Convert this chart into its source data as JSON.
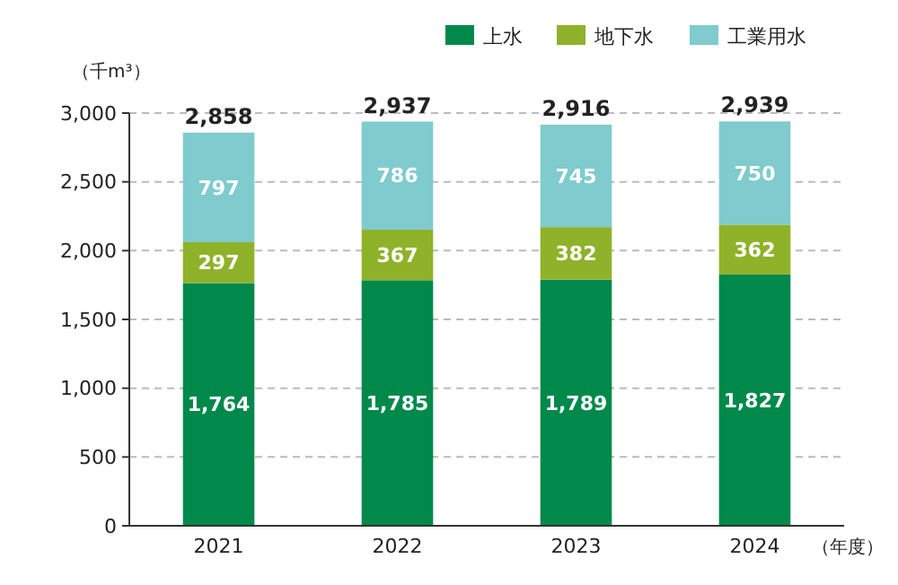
{
  "chart_data": {
    "type": "bar",
    "stacked": true,
    "categories": [
      "2021",
      "2022",
      "2023",
      "2024"
    ],
    "series": [
      {
        "name": "上水",
        "color": "#00894b",
        "values": [
          1764,
          1785,
          1789,
          1827
        ],
        "value_labels": [
          "1,764",
          "1,785",
          "1,789",
          "1,827"
        ]
      },
      {
        "name": "地下水",
        "color": "#8fb22a",
        "values": [
          297,
          367,
          382,
          362
        ],
        "value_labels": [
          "297",
          "367",
          "382",
          "362"
        ]
      },
      {
        "name": "工業用水",
        "color": "#7fcbcd",
        "values": [
          797,
          786,
          745,
          750
        ],
        "value_labels": [
          "797",
          "786",
          "745",
          "750"
        ]
      }
    ],
    "totals": [
      "2,858",
      "2,937",
      "2,916",
      "2,939"
    ],
    "ylim": [
      0,
      3000
    ],
    "yticks": [
      0,
      500,
      {
        "value": 1000,
        "label": "1,000"
      },
      {
        "value": 1500,
        "label": "1,500"
      },
      {
        "value": 2000,
        "label": "2,000"
      },
      {
        "value": 2500,
        "label": "2,500"
      },
      {
        "value": 3000,
        "label": "3,000"
      }
    ],
    "ylabel": "（千m³）",
    "xlabel": "（年度）",
    "grid": "y",
    "legend": "top right"
  }
}
